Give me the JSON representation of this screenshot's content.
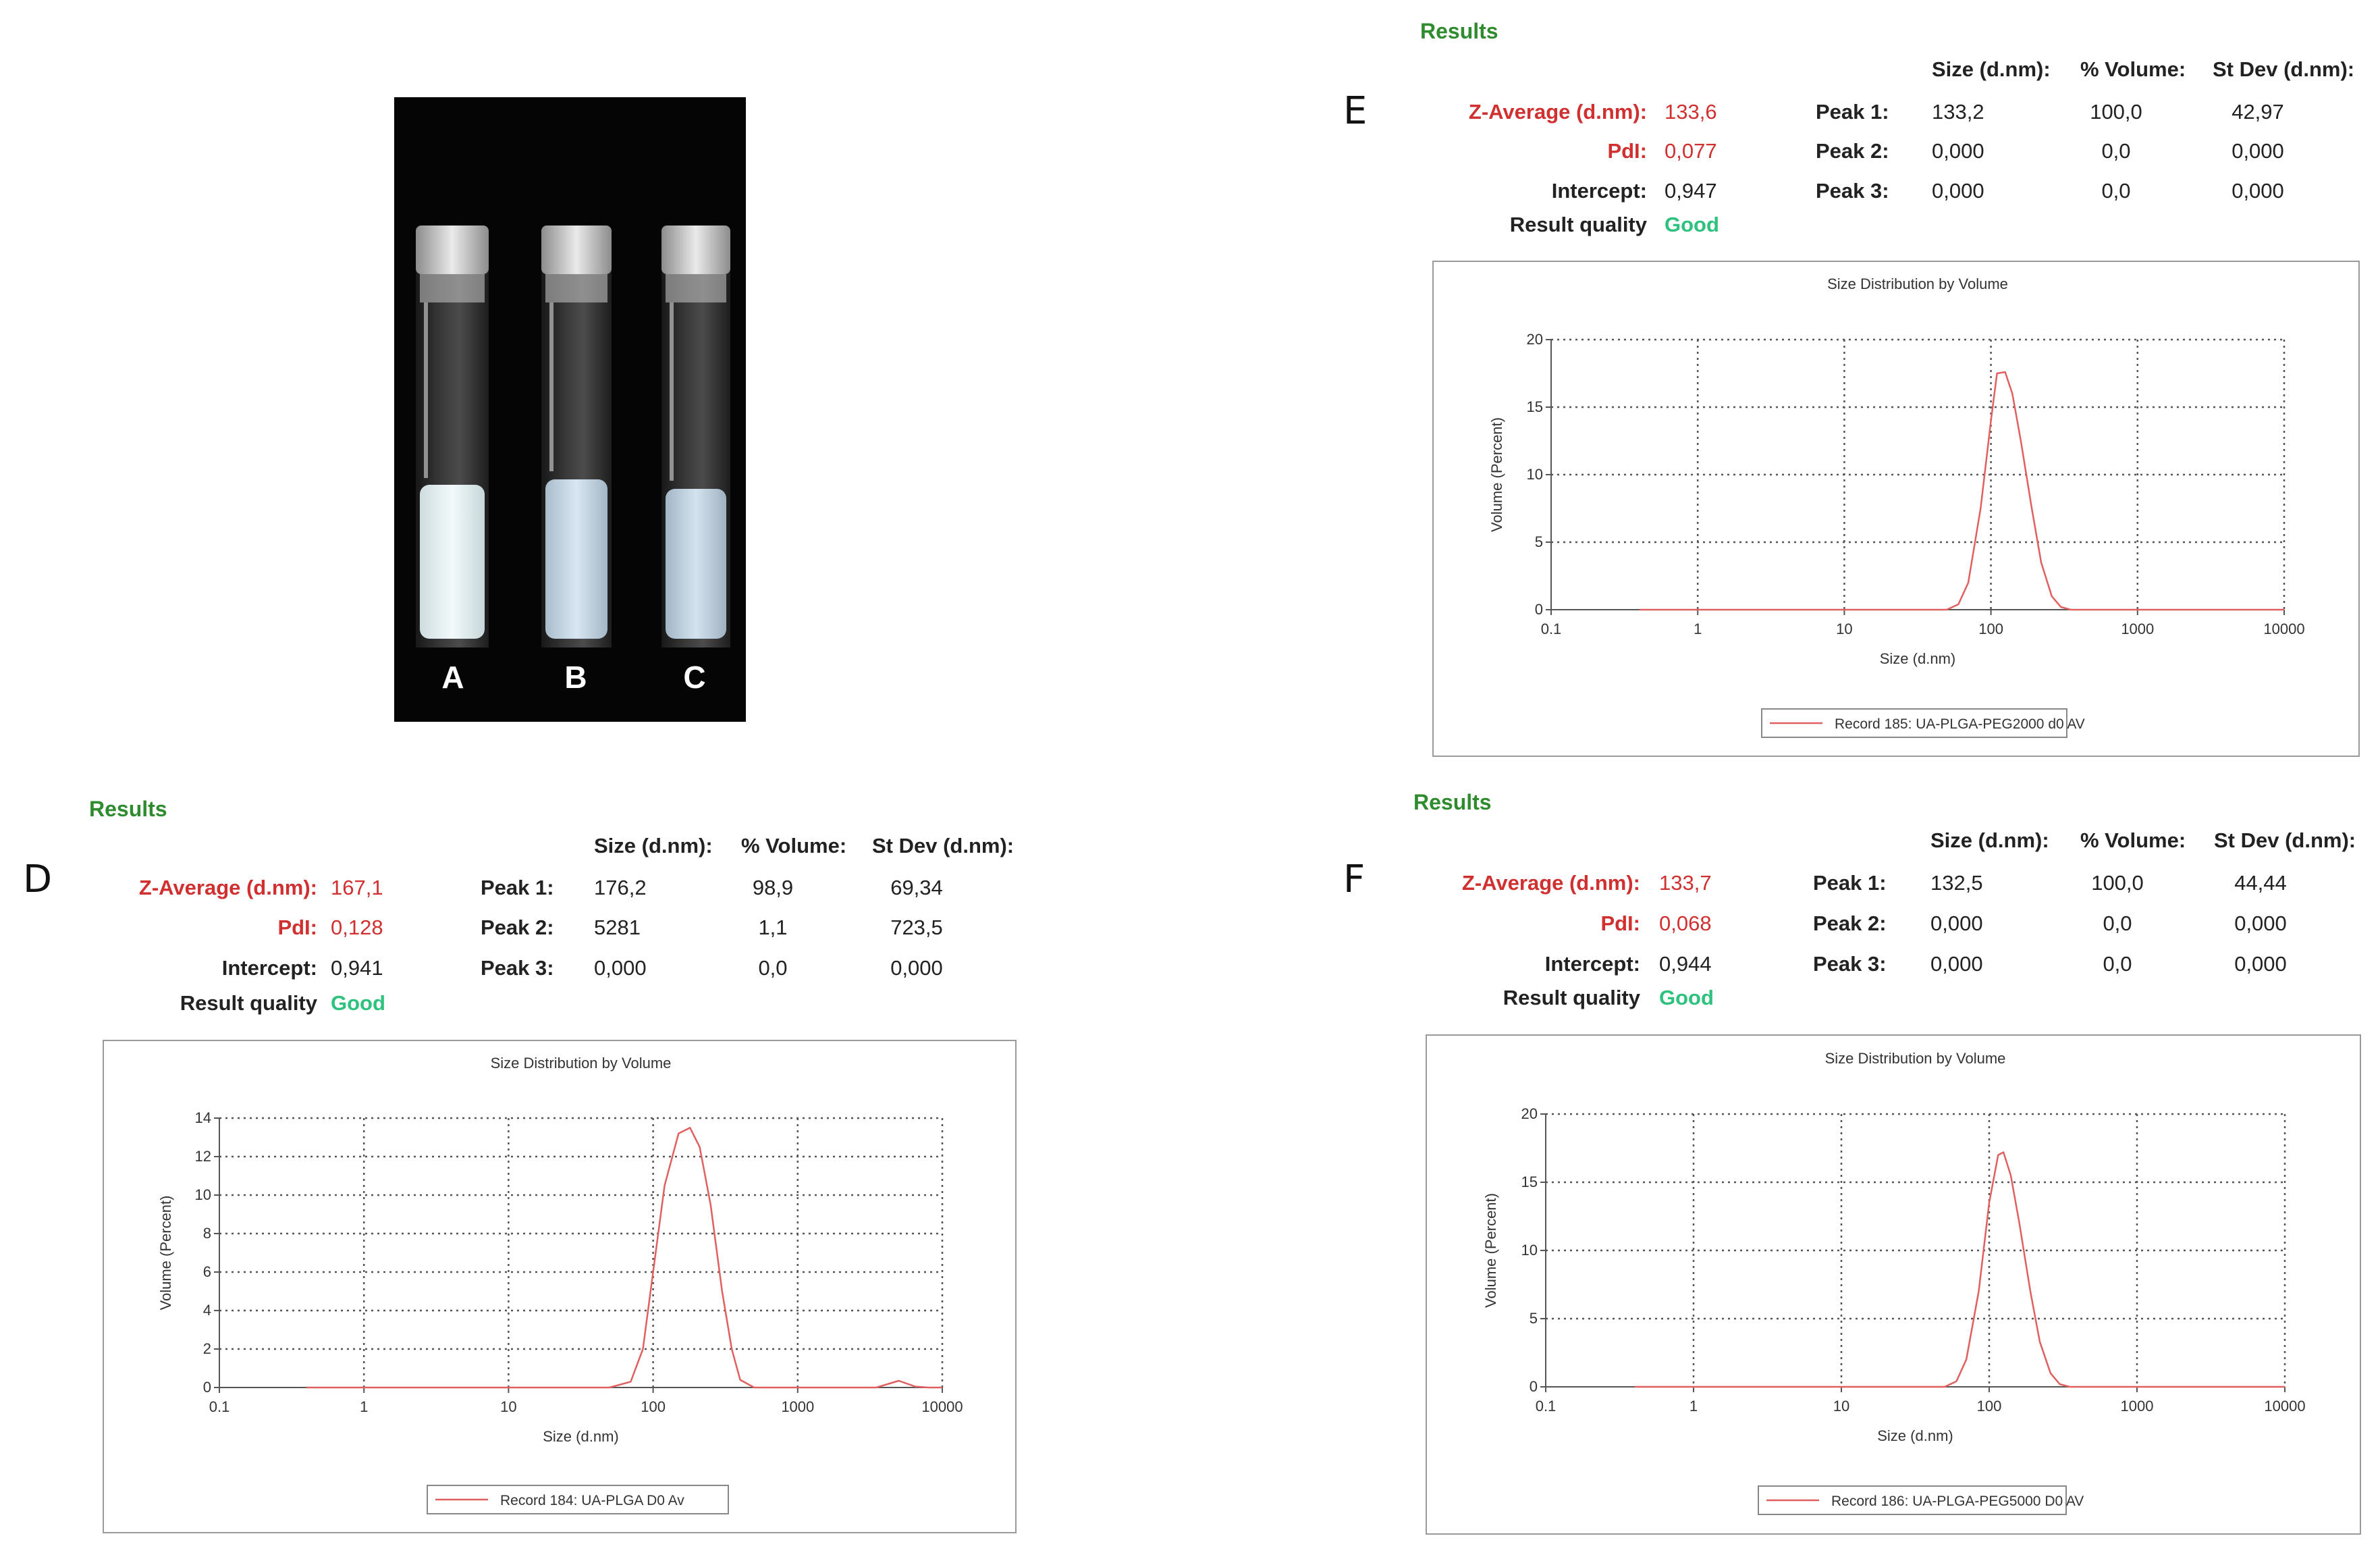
{
  "photo": {
    "labels": [
      "A",
      "B",
      "C"
    ]
  },
  "panels": [
    {
      "letter": "D",
      "results_title": "Results",
      "headers": {
        "size": "Size (d.nm):",
        "volume": "% Volume:",
        "stdev": "St Dev (d.nm):"
      },
      "zavg_label": "Z-Average (d.nm):",
      "zavg_value": "167,1",
      "pdi_label": "PdI:",
      "pdi_value": "0,128",
      "intercept_label": "Intercept:",
      "intercept_value": "0,941",
      "quality_label": "Result quality",
      "quality_value": "Good",
      "peaks": [
        {
          "label": "Peak 1:",
          "size": "176,2",
          "volume": "98,9",
          "stdev": "69,34"
        },
        {
          "label": "Peak 2:",
          "size": "5281",
          "volume": "1,1",
          "stdev": "723,5"
        },
        {
          "label": "Peak 3:",
          "size": "0,000",
          "volume": "0,0",
          "stdev": "0,000"
        }
      ]
    },
    {
      "letter": "E",
      "results_title": "Results",
      "headers": {
        "size": "Size (d.nm):",
        "volume": "% Volume:",
        "stdev": "St Dev (d.nm):"
      },
      "zavg_label": "Z-Average (d.nm):",
      "zavg_value": "133,6",
      "pdi_label": "PdI:",
      "pdi_value": "0,077",
      "intercept_label": "Intercept:",
      "intercept_value": "0,947",
      "quality_label": "Result quality",
      "quality_value": "Good",
      "peaks": [
        {
          "label": "Peak 1:",
          "size": "133,2",
          "volume": "100,0",
          "stdev": "42,97"
        },
        {
          "label": "Peak 2:",
          "size": "0,000",
          "volume": "0,0",
          "stdev": "0,000"
        },
        {
          "label": "Peak 3:",
          "size": "0,000",
          "volume": "0,0",
          "stdev": "0,000"
        }
      ]
    },
    {
      "letter": "F",
      "results_title": "Results",
      "headers": {
        "size": "Size (d.nm):",
        "volume": "% Volume:",
        "stdev": "St Dev (d.nm):"
      },
      "zavg_label": "Z-Average (d.nm):",
      "zavg_value": "133,7",
      "pdi_label": "PdI:",
      "pdi_value": "0,068",
      "intercept_label": "Intercept:",
      "intercept_value": "0,944",
      "quality_label": "Result quality",
      "quality_value": "Good",
      "peaks": [
        {
          "label": "Peak 1:",
          "size": "132,5",
          "volume": "100,0",
          "stdev": "44,44"
        },
        {
          "label": "Peak 2:",
          "size": "0,000",
          "volume": "0,0",
          "stdev": "0,000"
        },
        {
          "label": "Peak 3:",
          "size": "0,000",
          "volume": "0,0",
          "stdev": "0,000"
        }
      ]
    }
  ],
  "chart_data": [
    {
      "type": "line",
      "title": "Size Distribution by Volume",
      "xlabel": "Size (d.nm)",
      "ylabel": "Volume (Percent)",
      "xscale": "log",
      "xlim": [
        0.1,
        10000
      ],
      "ylim": [
        0,
        14
      ],
      "xticks": [
        "0.1",
        "1",
        "10",
        "100",
        "1000",
        "10000"
      ],
      "yticks": [
        "0",
        "2",
        "4",
        "6",
        "8",
        "10",
        "12",
        "14"
      ],
      "grid": true,
      "legend_position": "bottom",
      "line_color": "#e06060",
      "series": [
        {
          "name": "Record 184: UA-PLGA D0 Av",
          "x": [
            0.4,
            50,
            70,
            85,
            100,
            120,
            150,
            180,
            210,
            250,
            300,
            350,
            400,
            500,
            2000,
            3500,
            5000,
            6500,
            8000,
            10000
          ],
          "y": [
            0,
            0,
            0.3,
            2,
            6,
            10.5,
            13.2,
            13.5,
            12.5,
            9.5,
            5,
            2,
            0.4,
            0,
            0,
            0,
            0.35,
            0.05,
            0,
            0
          ]
        }
      ]
    },
    {
      "type": "line",
      "title": "Size Distribution by Volume",
      "xlabel": "Size (d.nm)",
      "ylabel": "Volume (Percent)",
      "xscale": "log",
      "xlim": [
        0.1,
        10000
      ],
      "ylim": [
        0,
        20
      ],
      "xticks": [
        "0.1",
        "1",
        "10",
        "100",
        "1000",
        "10000"
      ],
      "yticks": [
        "0",
        "5",
        "10",
        "15",
        "20"
      ],
      "grid": true,
      "legend_position": "bottom",
      "line_color": "#e06060",
      "series": [
        {
          "name": "Record 185: UA-PLGA-PEG2000 d0 AV",
          "x": [
            0.4,
            50,
            60,
            70,
            85,
            100,
            110,
            125,
            140,
            160,
            190,
            220,
            260,
            300,
            350,
            10000
          ],
          "y": [
            0,
            0,
            0.4,
            2,
            7.5,
            14,
            17.5,
            17.6,
            16,
            12.5,
            7.5,
            3.5,
            1,
            0.2,
            0,
            0
          ]
        }
      ]
    },
    {
      "type": "line",
      "title": "Size Distribution by Volume",
      "xlabel": "Size (d.nm)",
      "ylabel": "Volume (Percent)",
      "xscale": "log",
      "xlim": [
        0.1,
        10000
      ],
      "ylim": [
        0,
        20
      ],
      "xticks": [
        "0.1",
        "1",
        "10",
        "100",
        "1000",
        "10000"
      ],
      "yticks": [
        "0",
        "5",
        "10",
        "15",
        "20"
      ],
      "grid": true,
      "legend_position": "bottom",
      "line_color": "#e06060",
      "series": [
        {
          "name": "Record 186: UA-PLGA-PEG5000 D0 AV",
          "x": [
            0.4,
            50,
            60,
            70,
            85,
            100,
            115,
            125,
            140,
            160,
            190,
            220,
            260,
            300,
            350,
            10000
          ],
          "y": [
            0,
            0,
            0.4,
            2,
            7,
            13.5,
            17,
            17.2,
            15.5,
            12,
            7,
            3.3,
            1,
            0.2,
            0,
            0
          ]
        }
      ]
    }
  ]
}
